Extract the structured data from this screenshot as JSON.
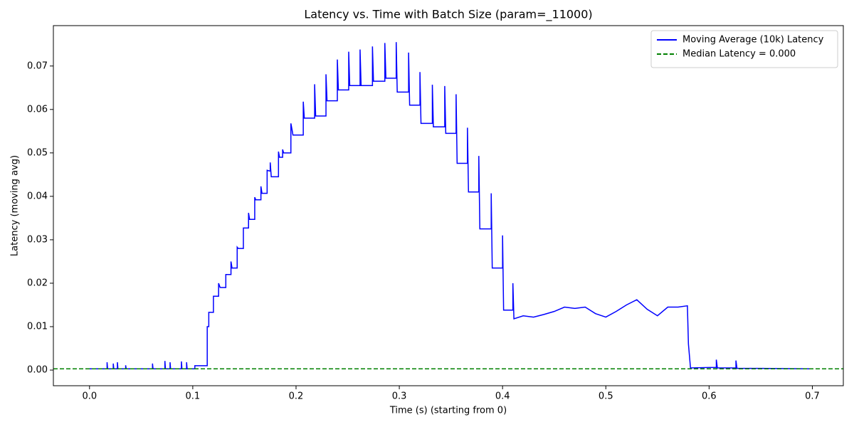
{
  "chart_data": {
    "type": "line",
    "title": "Latency vs. Time with Batch Size (param=_11000)",
    "x_label": "Time (s) (starting from 0)",
    "y_label": "Latency (moving avg)",
    "xlim": [
      -0.035,
      0.73
    ],
    "ylim": [
      -0.0036,
      0.0793
    ],
    "xticks": [
      {
        "value": 0,
        "label": "0.0"
      },
      0.1,
      0.2,
      0.3,
      0.4,
      0.5,
      0.6,
      0.7
    ],
    "yticks": [
      {
        "value": 0,
        "label": "0.00"
      },
      0.01,
      0.02,
      0.03,
      0.04,
      0.05,
      0.06,
      0.07
    ],
    "grid": false,
    "legend": "upper right",
    "x": [
      0,
      0.017,
      0.017,
      0.0175,
      0.023,
      0.023,
      0.0235,
      0.027,
      0.027,
      0.0275,
      0.035,
      0.035,
      0.0355,
      0.061,
      0.061,
      0.0615,
      0.073,
      0.073,
      0.0735,
      0.078,
      0.078,
      0.0785,
      0.089,
      0.089,
      0.0895,
      0.094,
      0.094,
      0.0945,
      0.102,
      0.102,
      0.114,
      0.114,
      0.1155,
      0.1155,
      0.12,
      0.12,
      0.125,
      0.125,
      0.1265,
      0.132,
      0.132,
      0.137,
      0.137,
      0.138,
      0.143,
      0.143,
      0.144,
      0.149,
      0.149,
      0.154,
      0.154,
      0.155,
      0.16,
      0.16,
      0.161,
      0.166,
      0.166,
      0.167,
      0.172,
      0.172,
      0.175,
      0.175,
      0.176,
      0.183,
      0.183,
      0.184,
      0.187,
      0.187,
      0.188,
      0.195,
      0.195,
      0.196,
      0.197,
      0.207,
      0.207,
      0.208,
      0.218,
      0.218,
      0.219,
      0.229,
      0.229,
      0.23,
      0.24,
      0.24,
      0.241,
      0.251,
      0.251,
      0.252,
      0.262,
      0.262,
      0.263,
      0.274,
      0.274,
      0.275,
      0.286,
      0.286,
      0.287,
      0.297,
      0.297,
      0.298,
      0.309,
      0.309,
      0.31,
      0.32,
      0.32,
      0.321,
      0.332,
      0.332,
      0.333,
      0.344,
      0.344,
      0.345,
      0.355,
      0.355,
      0.356,
      0.366,
      0.366,
      0.367,
      0.377,
      0.377,
      0.378,
      0.389,
      0.389,
      0.39,
      0.4,
      0.4,
      0.401,
      0.41,
      0.41,
      0.411,
      0.42,
      0.43,
      0.44,
      0.45,
      0.46,
      0.47,
      0.48,
      0.49,
      0.5,
      0.51,
      0.52,
      0.53,
      0.54,
      0.55,
      0.56,
      0.57,
      0.579,
      0.58,
      0.582,
      0.6,
      0.607,
      0.607,
      0.608,
      0.626,
      0.626,
      0.627,
      0.65,
      0.697
    ],
    "series": [
      {
        "name": "Moving Average (10k) Latency",
        "color": "#0000ff",
        "values": [
          0.0003,
          0.0003,
          0.0018,
          0.0003,
          0.0003,
          0.0015,
          0.0003,
          0.0003,
          0.0018,
          0.0003,
          0.0003,
          0.0011,
          0.0003,
          0.0003,
          0.0015,
          0.0003,
          0.0003,
          0.0021,
          0.0003,
          0.0003,
          0.0018,
          0.0003,
          0.0003,
          0.002,
          0.0003,
          0.0003,
          0.0018,
          0.0003,
          0.0003,
          0.001,
          0.001,
          0.01,
          0.01,
          0.0133,
          0.0133,
          0.017,
          0.017,
          0.02,
          0.019,
          0.019,
          0.022,
          0.022,
          0.025,
          0.0235,
          0.0235,
          0.0283,
          0.028,
          0.028,
          0.0327,
          0.0327,
          0.0362,
          0.0347,
          0.0347,
          0.0398,
          0.0392,
          0.0392,
          0.0423,
          0.0407,
          0.0407,
          0.046,
          0.0458,
          0.0478,
          0.0445,
          0.0445,
          0.0503,
          0.049,
          0.049,
          0.0508,
          0.05,
          0.05,
          0.0568,
          0.0555,
          0.0541,
          0.0541,
          0.0618,
          0.058,
          0.058,
          0.0658,
          0.0585,
          0.0585,
          0.0681,
          0.062,
          0.062,
          0.0715,
          0.0645,
          0.0645,
          0.0733,
          0.0655,
          0.0655,
          0.0738,
          0.0655,
          0.0655,
          0.0745,
          0.0665,
          0.0665,
          0.0753,
          0.0672,
          0.0672,
          0.0755,
          0.064,
          0.064,
          0.0731,
          0.061,
          0.061,
          0.0686,
          0.0568,
          0.0568,
          0.0657,
          0.056,
          0.056,
          0.0654,
          0.0545,
          0.0545,
          0.0635,
          0.0476,
          0.0476,
          0.0558,
          0.041,
          0.041,
          0.0493,
          0.0325,
          0.0325,
          0.0407,
          0.0235,
          0.0235,
          0.031,
          0.0138,
          0.0138,
          0.02,
          0.0118,
          0.0125,
          0.0122,
          0.0128,
          0.0135,
          0.0145,
          0.0142,
          0.0145,
          0.013,
          0.0122,
          0.0135,
          0.015,
          0.0162,
          0.014,
          0.0125,
          0.0145,
          0.0145,
          0.0148,
          0.006,
          0.0005,
          0.0006,
          0.0006,
          0.0024,
          0.0005,
          0.0005,
          0.0022,
          0.0004,
          0.0004,
          0.0003
        ]
      }
    ],
    "hlines": [
      {
        "name": "Median Latency = 0.000",
        "color": "#008000",
        "value": 0.0003,
        "style": "dashed"
      }
    ]
  }
}
